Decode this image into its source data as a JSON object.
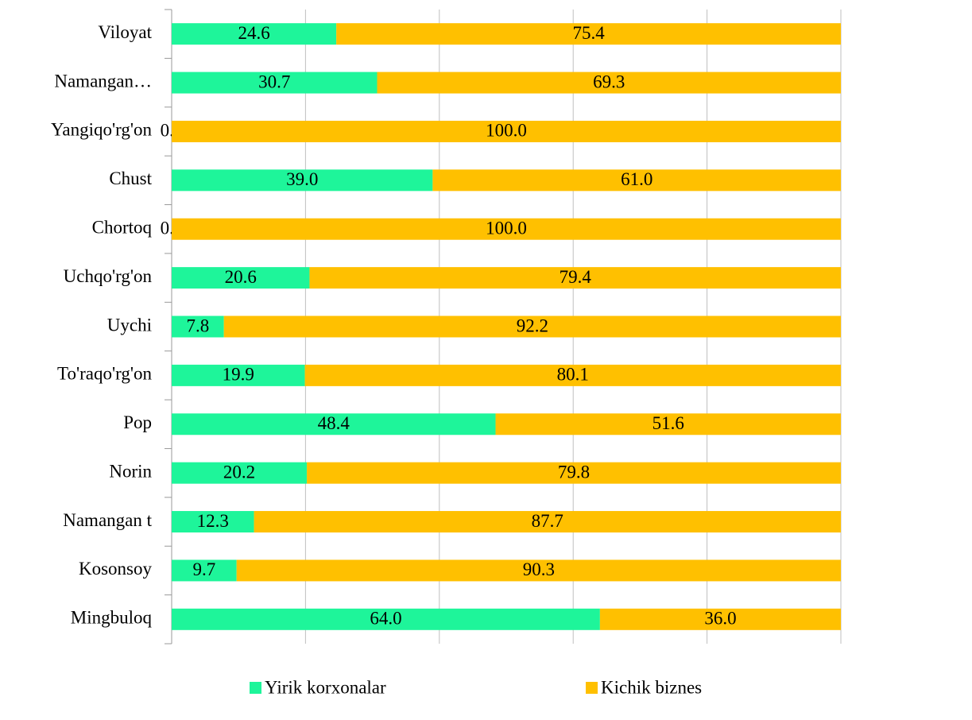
{
  "chart_data": {
    "type": "stacked_barh",
    "categories": [
      "Viloyat",
      "Namangan…",
      "Yangiqo'rg'on",
      "Chust",
      "Chortoq",
      "Uchqo'rg'on",
      "Uychi",
      "To'raqo'rg'on",
      "Pop",
      "Norin",
      "Namangan t",
      "Kosonsoy",
      "Mingbuloq"
    ],
    "series": [
      {
        "name": "Yirik korxonalar",
        "color": "#1ef59a",
        "values": [
          24.6,
          30.7,
          0,
          39.0,
          0,
          20.6,
          7.8,
          19.9,
          48.4,
          20.2,
          12.3,
          9.7,
          64.0
        ],
        "value_labels": [
          "24.6",
          "30.7",
          "0.0",
          "39.0",
          "0.0",
          "20.6",
          "7.8",
          "19.9",
          "48.4",
          "20.2",
          "12.3",
          "9.7",
          "64.0"
        ]
      },
      {
        "name": "Kichik biznes",
        "color": "#ffc000",
        "values": [
          75.4,
          69.3,
          100.0,
          61.0,
          100.0,
          79.4,
          92.2,
          80.1,
          51.6,
          79.8,
          87.7,
          90.3,
          36.0
        ],
        "value_labels": [
          "75.4",
          "69.3",
          "100.0",
          "61.0",
          "100.0",
          "79.4",
          "92.2",
          "80.1",
          "51.6",
          "79.8",
          "87.7",
          "90.3",
          "36.0"
        ]
      }
    ],
    "xlim": [
      0,
      100
    ],
    "xticks": [
      0,
      20,
      40,
      60,
      80,
      100
    ],
    "grid": true,
    "legend": "bottom"
  }
}
